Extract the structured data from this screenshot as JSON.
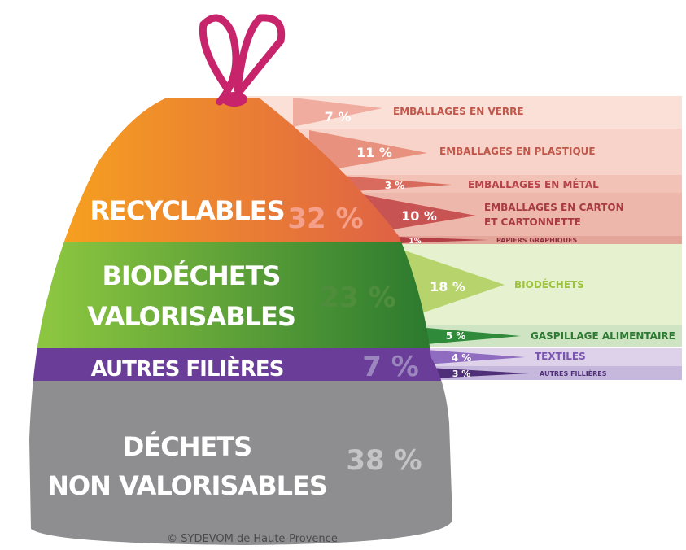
{
  "sections": [
    {
      "label_lines": [
        "RECYCLABLES"
      ],
      "percent": "32 %",
      "items": [
        {
          "percent": "7 %",
          "label_lines": [
            "EMBALLAGES EN VERRE"
          ]
        },
        {
          "percent": "11 %",
          "label_lines": [
            "EMBALLAGES EN PLASTIQUE"
          ]
        },
        {
          "percent": "3 %",
          "label_lines": [
            "EMBALLAGES EN MÉTAL"
          ]
        },
        {
          "percent": "10 %",
          "label_lines": [
            "EMBALLAGES EN CARTON",
            "ET CARTONNETTE"
          ]
        },
        {
          "percent": "1%",
          "label_lines": [
            "PAPIERS GRAPHIQUES"
          ]
        }
      ]
    },
    {
      "label_lines": [
        "BIODÉCHETS",
        "VALORISABLES"
      ],
      "percent": "23 %",
      "items": [
        {
          "percent": "18 %",
          "label_lines": [
            "BIODÉCHETS"
          ]
        },
        {
          "percent": "5 %",
          "label_lines": [
            "GASPILLAGE ALIMENTAIRE"
          ]
        }
      ]
    },
    {
      "label_lines": [
        "AUTRES FILIÈRES"
      ],
      "percent": "7 %",
      "items": [
        {
          "percent": "4 %",
          "label_lines": [
            "TEXTILES"
          ]
        },
        {
          "percent": "3 %",
          "label_lines": [
            "AUTRES FILLIÈRES"
          ]
        }
      ]
    },
    {
      "label_lines": [
        "DÉCHETS",
        "NON VALORISABLES"
      ],
      "percent": "38 %",
      "items": []
    }
  ],
  "copyright": "© SYDEVOM de Haute-Provence"
}
